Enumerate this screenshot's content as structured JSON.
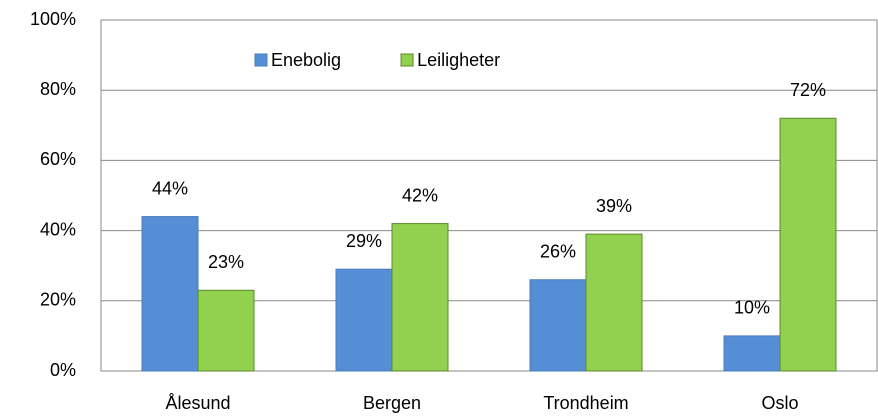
{
  "chart_data": {
    "type": "bar",
    "categories": [
      "Ålesund",
      "Bergen",
      "Trondheim",
      "Oslo"
    ],
    "series": [
      {
        "name": "Enebolig",
        "color": "#558ed5",
        "values": [
          44,
          29,
          26,
          10
        ],
        "value_labels": [
          "44%",
          "29%",
          "26%",
          "10%"
        ]
      },
      {
        "name": "Leiligheter",
        "color": "#92d050",
        "values": [
          23,
          42,
          39,
          72
        ],
        "value_labels": [
          "23%",
          "42%",
          "39%",
          "72%"
        ]
      }
    ],
    "ylim": [
      0,
      100
    ],
    "yticks": [
      {
        "value": 0,
        "label": "0%"
      },
      {
        "value": 20,
        "label": "20%"
      },
      {
        "value": 40,
        "label": "40%"
      },
      {
        "value": 60,
        "label": "60%"
      },
      {
        "value": 80,
        "label": "80%"
      },
      {
        "value": 100,
        "label": "100%"
      }
    ],
    "grid": true,
    "legend": "top"
  }
}
